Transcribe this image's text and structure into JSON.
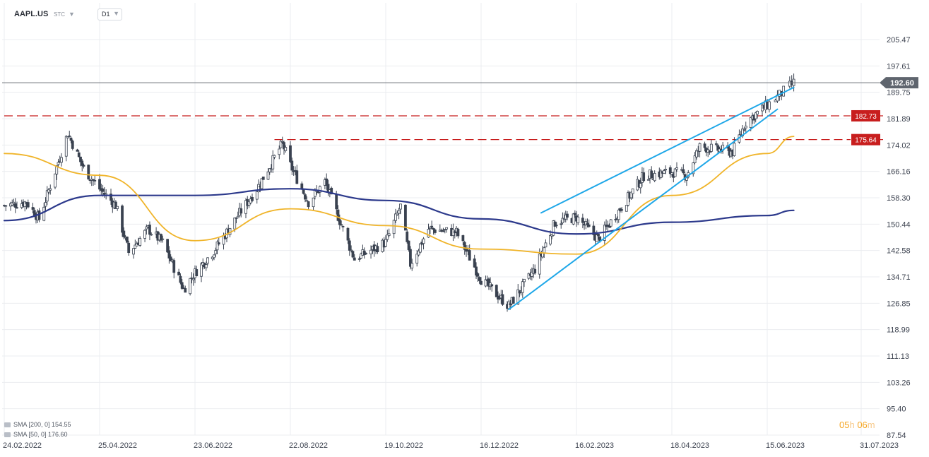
{
  "header": {
    "symbol": "AAPL.US",
    "market": "STC",
    "timeframe": "D1"
  },
  "indicators": [
    {
      "label": "SMA [200, 0] 154.55",
      "color": "#2d3a8c"
    },
    {
      "label": "SMA [50, 0] 176.60",
      "color": "#f0b429"
    }
  ],
  "countdown": {
    "h": "05",
    "h_unit": "h",
    "m": "06",
    "m_unit": "m"
  },
  "colors": {
    "sma200": "#2d3a8c",
    "sma50": "#f0b429",
    "trendline": "#1ea7e8",
    "resistance": "#c81e1e",
    "candle": "#3a4250",
    "current_price_line": "#6b7078",
    "grid": "#ebedf0"
  },
  "chart_data": {
    "type": "candlestick",
    "title": "",
    "x_tick_labels": [
      "24.02.2022",
      "25.04.2022",
      "23.06.2022",
      "22.08.2022",
      "19.10.2022",
      "16.12.2022",
      "16.02.2023",
      "18.04.2023",
      "15.06.2023",
      "31.07.2023"
    ],
    "y_tick_labels": [
      "205.47",
      "197.61",
      "189.75",
      "181.89",
      "174.02",
      "166.16",
      "158.30",
      "150.44",
      "142.58",
      "134.71",
      "126.85",
      "118.99",
      "111.13",
      "103.26",
      "95.40",
      "87.54"
    ],
    "ylim": [
      87.54,
      205.47
    ],
    "grid": true,
    "current_price": 192.6,
    "current_price_label": "192.60",
    "horizontal_levels": [
      {
        "value": 182.73,
        "label": "182.73",
        "start_date": "24.02.2022",
        "style": "dashed"
      },
      {
        "value": 175.64,
        "label": "175.64",
        "start_date": "12.08.2022",
        "style": "dashed"
      }
    ],
    "trendlines": [
      {
        "from": {
          "date": "03.01.2023",
          "value": 125.0
        },
        "to": {
          "date": "20.06.2023",
          "value": 184.7
        }
      },
      {
        "from": {
          "date": "24.01.2023",
          "value": 153.8
        },
        "to": {
          "date": "28.06.2023",
          "value": 191.2
        }
      }
    ],
    "price_series": {
      "name": "AAPL.US",
      "points": [
        {
          "date": "24.02.2022",
          "value": 156.0
        },
        {
          "date": "10.03.2022",
          "value": 157.0
        },
        {
          "date": "18.03.2022",
          "value": 152.0
        },
        {
          "date": "05.04.2022",
          "value": 177.5
        },
        {
          "date": "15.04.2022",
          "value": 167.0
        },
        {
          "date": "25.04.2022",
          "value": 161.0
        },
        {
          "date": "05.05.2022",
          "value": 156.0
        },
        {
          "date": "13.05.2022",
          "value": 142.0
        },
        {
          "date": "25.05.2022",
          "value": 149.0
        },
        {
          "date": "03.06.2022",
          "value": 145.0
        },
        {
          "date": "16.06.2022",
          "value": 131.0
        },
        {
          "date": "23.06.2022",
          "value": 136.0
        },
        {
          "date": "05.07.2022",
          "value": 142.5
        },
        {
          "date": "20.07.2022",
          "value": 153.0
        },
        {
          "date": "01.08.2022",
          "value": 161.0
        },
        {
          "date": "17.08.2022",
          "value": 174.5
        },
        {
          "date": "22.08.2022",
          "value": 168.0
        },
        {
          "date": "02.09.2022",
          "value": 157.0
        },
        {
          "date": "12.09.2022",
          "value": 163.0
        },
        {
          "date": "30.09.2022",
          "value": 140.0
        },
        {
          "date": "19.10.2022",
          "value": 145.0
        },
        {
          "date": "28.10.2022",
          "value": 155.7
        },
        {
          "date": "03.11.2022",
          "value": 138.5
        },
        {
          "date": "14.11.2022",
          "value": 149.0
        },
        {
          "date": "01.12.2022",
          "value": 148.0
        },
        {
          "date": "16.12.2022",
          "value": 134.0
        },
        {
          "date": "03.01.2023",
          "value": 126.0
        },
        {
          "date": "20.01.2023",
          "value": 137.0
        },
        {
          "date": "02.02.2023",
          "value": 151.0
        },
        {
          "date": "16.02.2023",
          "value": 152.5
        },
        {
          "date": "02.03.2023",
          "value": 146.0
        },
        {
          "date": "16.03.2023",
          "value": 155.0
        },
        {
          "date": "31.03.2023",
          "value": 164.9
        },
        {
          "date": "18.04.2023",
          "value": 166.0
        },
        {
          "date": "27.04.2023",
          "value": 165.0
        },
        {
          "date": "05.05.2023",
          "value": 173.5
        },
        {
          "date": "25.05.2023",
          "value": 172.0
        },
        {
          "date": "02.06.2023",
          "value": 180.9
        },
        {
          "date": "15.06.2023",
          "value": 186.0
        },
        {
          "date": "28.06.2023",
          "value": 192.6
        }
      ]
    },
    "series": [
      {
        "name": "SMA [200, 0]",
        "color": "#2d3a8c",
        "points": [
          {
            "date": "24.02.2022",
            "value": 151.5
          },
          {
            "date": "25.04.2022",
            "value": 159.0
          },
          {
            "date": "23.06.2022",
            "value": 159.0
          },
          {
            "date": "22.08.2022",
            "value": 161.0
          },
          {
            "date": "19.10.2022",
            "value": 157.5
          },
          {
            "date": "16.12.2022",
            "value": 152.0
          },
          {
            "date": "16.02.2023",
            "value": 147.5
          },
          {
            "date": "18.04.2023",
            "value": 151.0
          },
          {
            "date": "15.06.2023",
            "value": 153.0
          },
          {
            "date": "28.06.2023",
            "value": 154.55
          }
        ]
      },
      {
        "name": "SMA [50, 0]",
        "color": "#f0b429",
        "points": [
          {
            "date": "24.02.2022",
            "value": 171.5
          },
          {
            "date": "25.04.2022",
            "value": 165.0
          },
          {
            "date": "23.06.2022",
            "value": 145.5
          },
          {
            "date": "22.08.2022",
            "value": 155.0
          },
          {
            "date": "19.10.2022",
            "value": 150.0
          },
          {
            "date": "16.12.2022",
            "value": 143.0
          },
          {
            "date": "16.02.2023",
            "value": 141.5
          },
          {
            "date": "18.04.2023",
            "value": 159.0
          },
          {
            "date": "15.06.2023",
            "value": 171.5
          },
          {
            "date": "28.06.2023",
            "value": 176.6
          }
        ]
      }
    ]
  }
}
